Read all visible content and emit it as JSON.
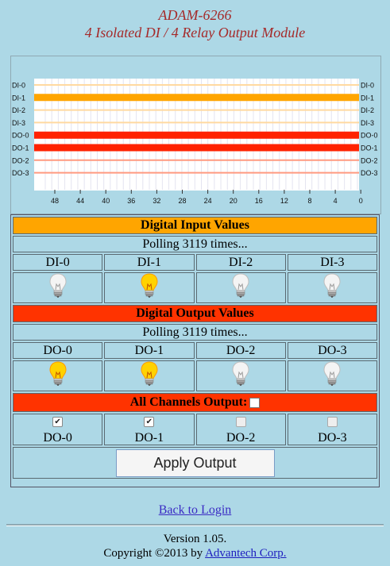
{
  "header": {
    "model": "ADAM-6266",
    "description": "4 Isolated DI / 4 Relay Output Module"
  },
  "chart": {
    "left_labels": [
      "DI-0",
      "DI-1",
      "DI-2",
      "DI-3",
      "DO-0",
      "DO-1",
      "DO-2",
      "DO-3"
    ],
    "right_labels": [
      "DI-0",
      "DI-1",
      "DI-2",
      "DI-3",
      "DO-0",
      "DO-1",
      "DO-2",
      "DO-3"
    ],
    "x_ticks": [
      "48",
      "44",
      "40",
      "36",
      "32",
      "28",
      "24",
      "20",
      "16",
      "12",
      "8",
      "4",
      "0"
    ],
    "states": [
      false,
      true,
      false,
      false,
      true,
      true,
      false,
      false
    ],
    "colors": {
      "di_on": "#ffa500",
      "di_off": "#ffd9a0",
      "do_on": "#ff2200",
      "do_off": "#ff9a80"
    }
  },
  "digital_input": {
    "title": "Digital Input Values",
    "polling": "Polling 3119 times...",
    "channels": [
      {
        "label": "DI-0",
        "on": false
      },
      {
        "label": "DI-1",
        "on": true
      },
      {
        "label": "DI-2",
        "on": false
      },
      {
        "label": "DI-3",
        "on": false
      }
    ]
  },
  "digital_output": {
    "title": "Digital Output Values",
    "polling": "Polling 3119 times...",
    "channels": [
      {
        "label": "DO-0",
        "on": true
      },
      {
        "label": "DO-1",
        "on": true
      },
      {
        "label": "DO-2",
        "on": false
      },
      {
        "label": "DO-3",
        "on": false
      }
    ]
  },
  "all_output": {
    "title": "All Channels Output:",
    "checked": false,
    "channels": [
      {
        "label": "DO-0",
        "checked": true
      },
      {
        "label": "DO-1",
        "checked": true
      },
      {
        "label": "DO-2",
        "checked": false
      },
      {
        "label": "DO-3",
        "checked": false
      }
    ]
  },
  "apply_label": "Apply Output",
  "back_link": "Back to Login",
  "footer": {
    "version": "Version 1.05.",
    "copyright_prefix": "Copyright ©2013 by ",
    "company": "Advantech Corp."
  }
}
